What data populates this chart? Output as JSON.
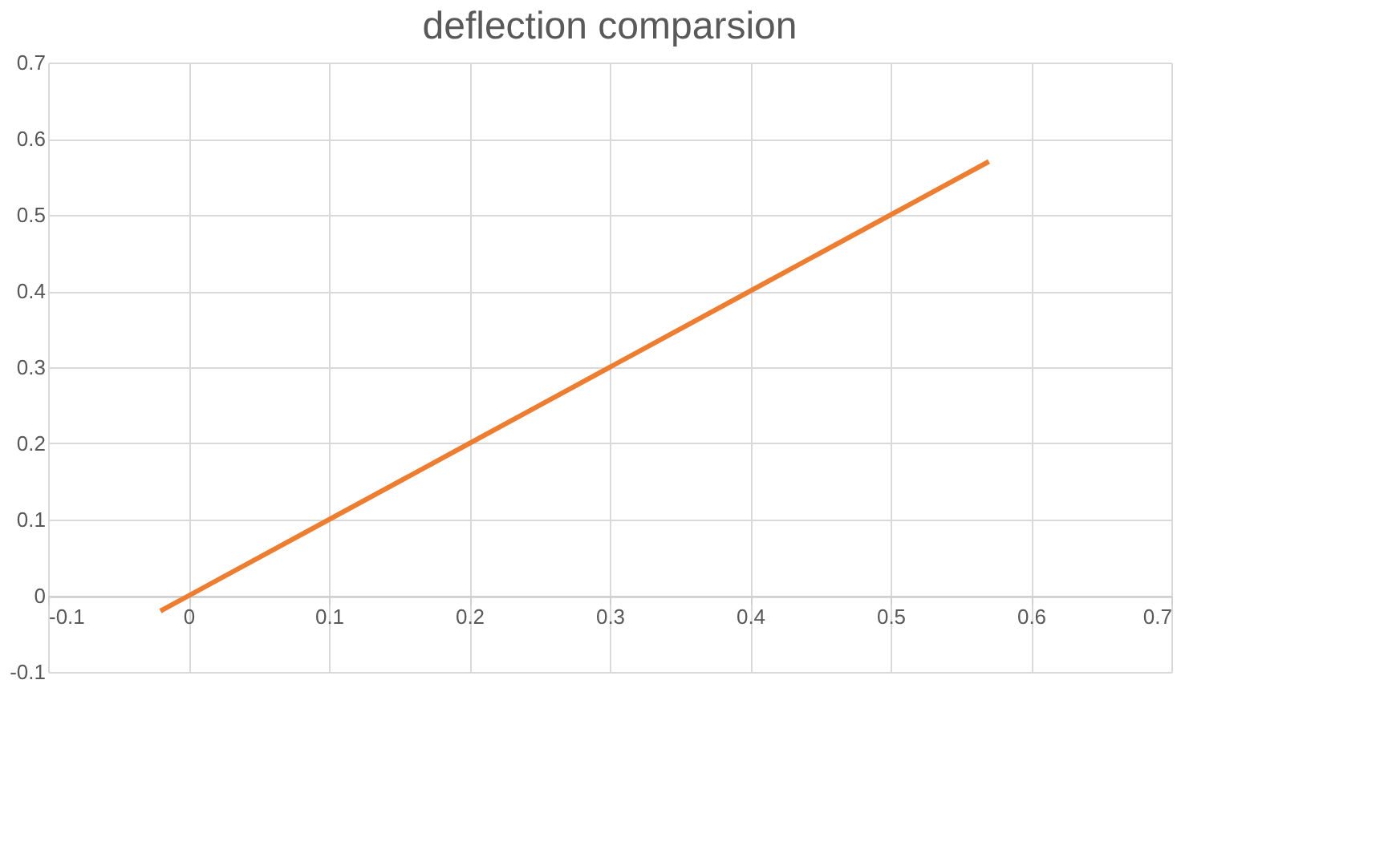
{
  "chart_data": {
    "type": "line",
    "title": "deflection  comparsion",
    "x": [
      -0.02,
      0.1,
      0.2,
      0.3,
      0.4,
      0.5,
      0.57
    ],
    "series": [
      {
        "color": "#ed7d31",
        "values": [
          -0.02,
          0.1,
          0.2,
          0.3,
          0.4,
          0.5,
          0.57
        ]
      }
    ],
    "xlim": [
      -0.1,
      0.7
    ],
    "xticks": [
      -0.1,
      0,
      0.1,
      0.2,
      0.3,
      0.4,
      0.5,
      0.6,
      0.7
    ],
    "ylim": [
      -0.1,
      0.7
    ],
    "yticks": [
      -0.1,
      0,
      0.1,
      0.2,
      0.3,
      0.4,
      0.5,
      0.6,
      0.7
    ],
    "grid": true,
    "legend": false,
    "marker": "none",
    "line_style": "solid"
  }
}
